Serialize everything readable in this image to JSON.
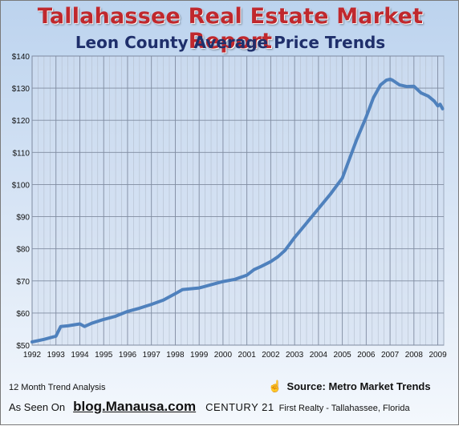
{
  "chart_data": {
    "type": "line",
    "title": "Tallahassee Real Estate Market Report",
    "subtitle": "Leon County Average Price Trends",
    "xlabel": "",
    "ylabel": "",
    "ylim": [
      50,
      140
    ],
    "xlim": [
      1992,
      2009.25
    ],
    "y_ticks": [
      "$50",
      "$60",
      "$70",
      "$80",
      "$90",
      "$100",
      "$110",
      "$120",
      "$130",
      "$140"
    ],
    "x_ticks": [
      "1992",
      "1993",
      "1994",
      "1995",
      "1996",
      "1997",
      "1998",
      "1999",
      "2000",
      "2001",
      "2002",
      "2003",
      "2004",
      "2005",
      "2006",
      "2007",
      "2008",
      "2009"
    ],
    "grid": true,
    "line_color": "#4f81bd",
    "series": [
      {
        "name": "",
        "x": [
          1992.0,
          1992.5,
          1993.0,
          1993.2,
          1993.5,
          1994.0,
          1994.2,
          1994.5,
          1995.0,
          1995.5,
          1996.0,
          1996.5,
          1997.0,
          1997.5,
          1998.0,
          1998.3,
          1998.6,
          1999.0,
          1999.5,
          2000.0,
          2000.5,
          2001.0,
          2001.3,
          2001.6,
          2002.0,
          2002.3,
          2002.6,
          2003.0,
          2003.5,
          2004.0,
          2004.5,
          2005.0,
          2005.3,
          2005.6,
          2006.0,
          2006.3,
          2006.6,
          2006.85,
          2007.0,
          2007.1,
          2007.4,
          2007.7,
          2008.0,
          2008.3,
          2008.6,
          2008.85,
          2009.0,
          2009.1,
          2009.2
        ],
        "values": [
          51.0,
          51.8,
          52.8,
          55.8,
          56.0,
          56.6,
          55.8,
          56.8,
          58.0,
          59.0,
          60.5,
          61.5,
          62.7,
          64.0,
          66.0,
          67.3,
          67.5,
          67.8,
          68.8,
          69.8,
          70.5,
          71.8,
          73.5,
          74.5,
          76.0,
          77.5,
          79.5,
          83.5,
          88.0,
          92.5,
          97.0,
          102.0,
          108.0,
          114.0,
          121.0,
          127.0,
          131.0,
          132.5,
          132.8,
          132.5,
          131.0,
          130.5,
          130.6,
          128.5,
          127.5,
          126.0,
          124.5,
          125.0,
          123.6
        ]
      }
    ]
  },
  "footer": {
    "left_note": "12 Month Trend Analysis",
    "source": "Source: Metro Market Trends",
    "as_seen_on": "As Seen On",
    "blog": "blog.Manausa.com",
    "c21": "CENTURY 21",
    "realty": "First Realty - Tallahassee, Florida",
    "hand_icon": "pointing-hand-icon"
  }
}
